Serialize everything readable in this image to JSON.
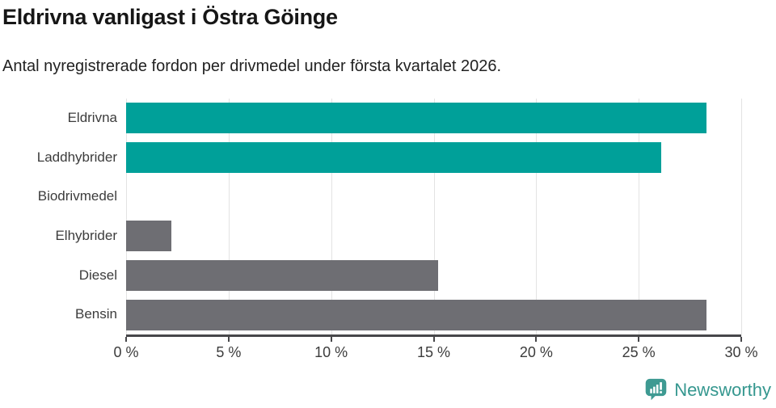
{
  "header": {
    "title": "Eldrivna vanligast i Östra Göinge",
    "subtitle": "Antal nyregistrerade fordon per drivmedel under första kvartalet 2026."
  },
  "chart_data": {
    "type": "bar",
    "orientation": "horizontal",
    "title": "Eldrivna vanligast i Östra Göinge",
    "subtitle": "Antal nyregistrerade fordon per drivmedel under första kvartalet 2026.",
    "categories": [
      "Eldrivna",
      "Laddhybrider",
      "Biodrivmedel",
      "Elhybrider",
      "Diesel",
      "Bensin"
    ],
    "values": [
      28.3,
      26.1,
      0,
      2.2,
      15.2,
      28.3
    ],
    "unit": "%",
    "bar_colors": [
      "#00a099",
      "#00a099",
      "#6e6e73",
      "#6e6e73",
      "#6e6e73",
      "#6e6e73"
    ],
    "xlim": [
      0,
      30
    ],
    "x_ticks": [
      0,
      5,
      10,
      15,
      20,
      25,
      30
    ],
    "x_tick_labels": [
      "0 %",
      "5 %",
      "10 %",
      "15 %",
      "20 %",
      "25 %",
      "30 %"
    ],
    "grid": "vertical",
    "legend": "none"
  },
  "footer": {
    "brand": "Newsworthy",
    "brand_color": "#35978f",
    "logo_icon": "bar-chart-speech-bubble-icon"
  },
  "colors": {
    "teal": "#00a099",
    "grey": "#6e6e73",
    "axis_line": "#47474a",
    "gridline": "#e3e3e3",
    "tick_text": "#3c3c3c"
  }
}
